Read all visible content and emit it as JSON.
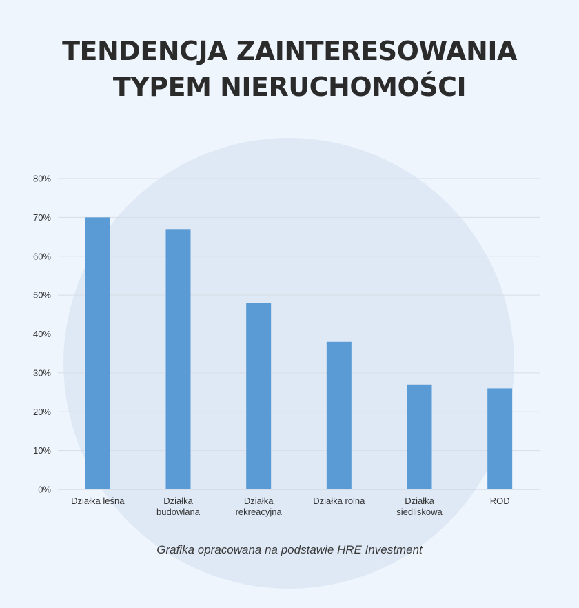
{
  "title": {
    "line1": "TENDENCJA ZAINTERESOWANIA",
    "line2": "TYPEM NIERUCHOMOŚCI"
  },
  "caption": "Grafika opracowana na podstawie HRE Investment",
  "colors": {
    "bar": "#5b9bd5",
    "grid": "#d6dde6",
    "background": "#eff5fd",
    "circle": "#dfe9f6",
    "text": "#333333"
  },
  "chart_data": {
    "type": "bar",
    "categories": [
      [
        "Działka leśna"
      ],
      [
        "Działka",
        "budowlana"
      ],
      [
        "Działka",
        "rekreacyjna"
      ],
      [
        "Działka rolna"
      ],
      [
        "Działka",
        "siedliskowa"
      ],
      [
        "ROD"
      ]
    ],
    "values": [
      70,
      67,
      48,
      38,
      27,
      26
    ],
    "value_unit": "%",
    "ylim": [
      0,
      80
    ],
    "yticks": [
      "0%",
      "10%",
      "20%",
      "30%",
      "40%",
      "50%",
      "60%",
      "70%",
      "80%"
    ],
    "grid": true,
    "legend": "none"
  }
}
